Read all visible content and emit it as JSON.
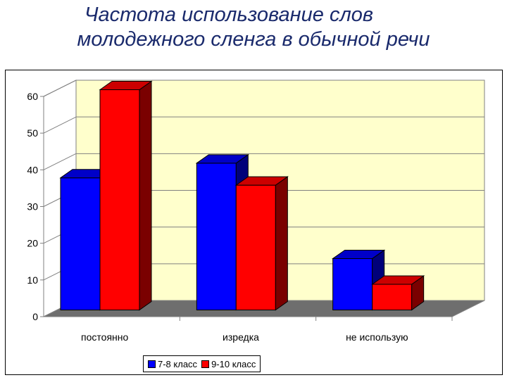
{
  "title": {
    "line1": "Частота использование слов",
    "line2": "молодежного сленга в обычной речи"
  },
  "colors": {
    "series1": "#0000ff",
    "series1_side": "#00007a",
    "series1_top": "#0000c8",
    "series2": "#ff0000",
    "series2_side": "#7a0000",
    "series2_top": "#cc0000",
    "wall": "#ffffcc",
    "floor": "#6e6e6e",
    "side_wall": "#ffffff"
  },
  "chart_data": {
    "type": "bar",
    "style": "3d-clustered-column",
    "title": "Частота использование слов молодежного сленга в обычной речи",
    "xlabel": "",
    "ylabel": "",
    "categories": [
      "постоянно",
      "изредка",
      "не использую"
    ],
    "series": [
      {
        "name": "7-8 класс",
        "values": [
          36,
          40,
          14
        ]
      },
      {
        "name": "9-10 класс",
        "values": [
          60,
          34,
          7
        ]
      }
    ],
    "ylim": [
      0,
      60
    ],
    "yticks": [
      0,
      10,
      20,
      30,
      40,
      50,
      60
    ],
    "ytick_labels": [
      "0",
      "10",
      "20",
      "30",
      "40",
      "50",
      "60"
    ],
    "grid": true,
    "legend_position": "bottom"
  }
}
